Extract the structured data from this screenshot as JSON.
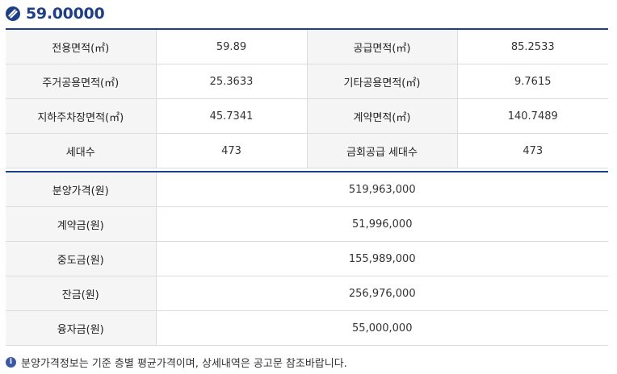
{
  "header": {
    "title": "59.00000"
  },
  "area_table": {
    "rows": [
      {
        "label1": "전용면적(㎡)",
        "value1": "59.89",
        "label2": "공급면적(㎡)",
        "value2": "85.2533"
      },
      {
        "label1": "주거공용면적(㎡)",
        "value1": "25.3633",
        "label2": "기타공용면적(㎡)",
        "value2": "9.7615"
      },
      {
        "label1": "지하주차장면적(㎡)",
        "value1": "45.7341",
        "label2": "계약면적(㎡)",
        "value2": "140.7489"
      },
      {
        "label1": "세대수",
        "value1": "473",
        "label2": "금회공급 세대수",
        "value2": "473"
      }
    ]
  },
  "price_table": {
    "rows": [
      {
        "label": "분양가격(원)",
        "value": "519,963,000"
      },
      {
        "label": "계약금(원)",
        "value": "51,996,000"
      },
      {
        "label": "중도금(원)",
        "value": "155,989,000"
      },
      {
        "label": "잔금(원)",
        "value": "256,976,000"
      },
      {
        "label": "융자금(원)",
        "value": "55,000,000"
      }
    ]
  },
  "note": {
    "icon": "info-icon",
    "icon_glyph": "i",
    "text": "분양가격정보는 기준 층별 평균가격이며, 상세내역은 공고문 참조바랍니다."
  },
  "colors": {
    "accent": "#1d3f8a",
    "label_bg": "#f5f5f5",
    "border": "#dcdcdc"
  }
}
